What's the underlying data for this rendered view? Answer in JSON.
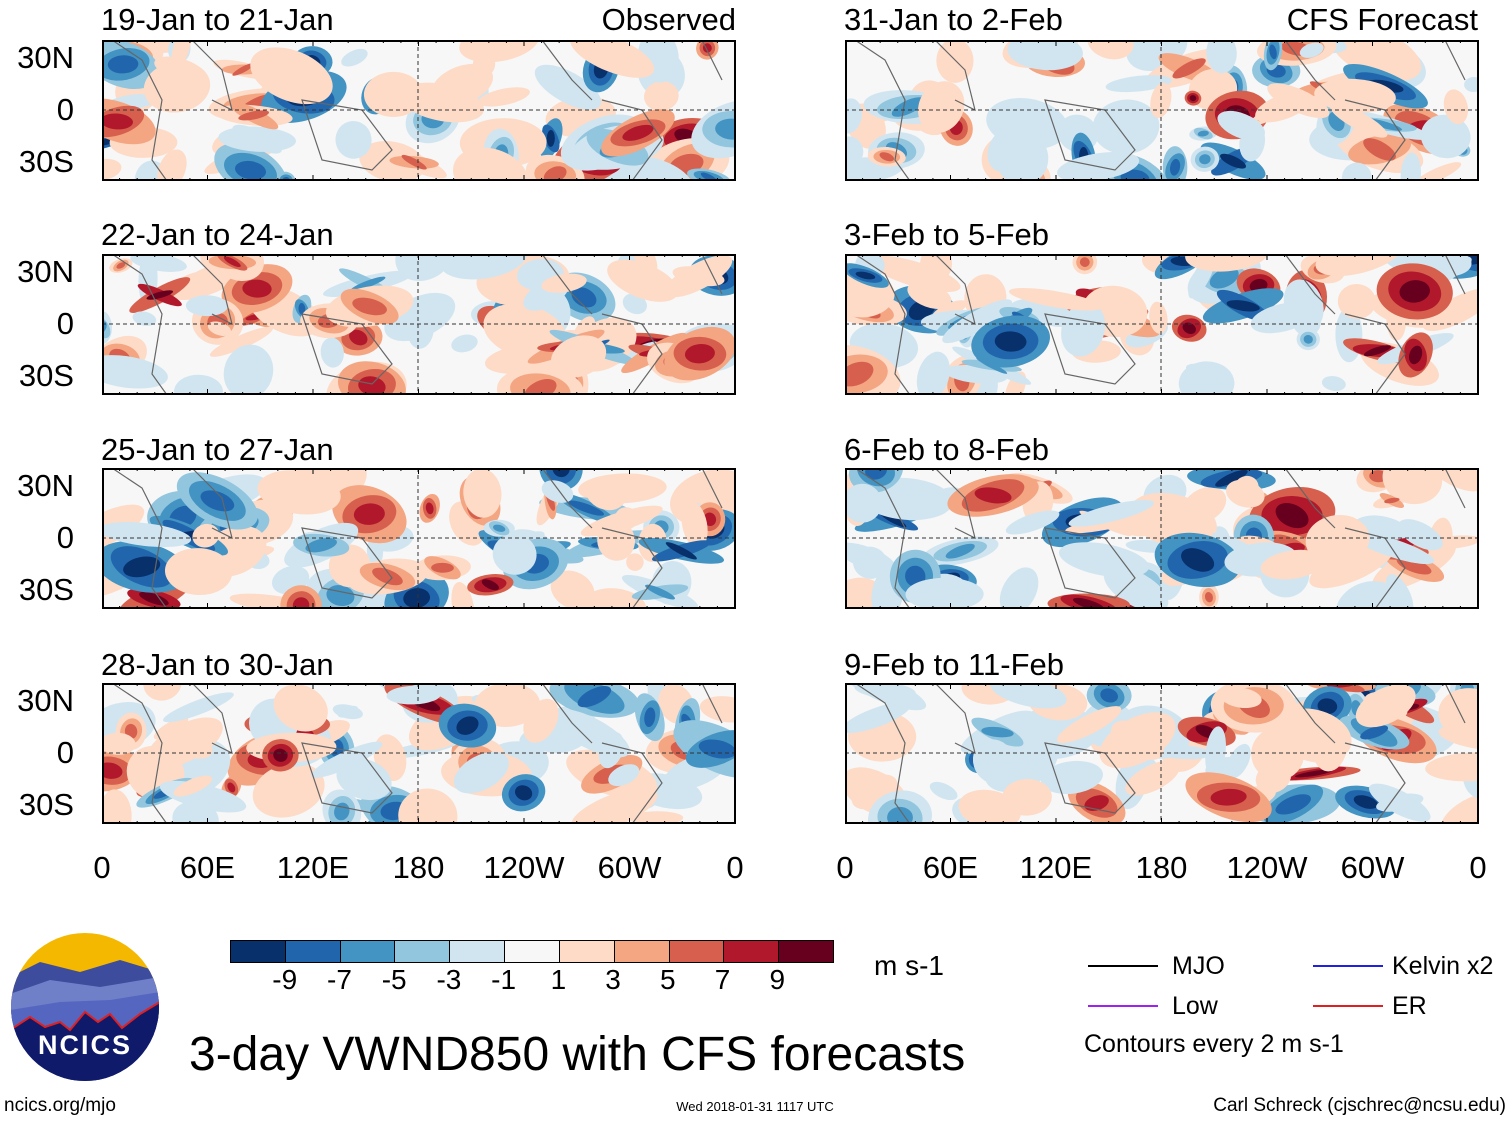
{
  "panels": {
    "left_column_label": "Observed",
    "right_column_label": "CFS Forecast",
    "left": [
      {
        "title": "19-Jan to 21-Jan"
      },
      {
        "title": "22-Jan to 24-Jan"
      },
      {
        "title": "25-Jan to 27-Jan"
      },
      {
        "title": "28-Jan to 30-Jan"
      }
    ],
    "right": [
      {
        "title": "31-Jan to 2-Feb"
      },
      {
        "title": "3-Feb to 5-Feb"
      },
      {
        "title": "6-Feb to 8-Feb"
      },
      {
        "title": "9-Feb to 11-Feb"
      }
    ]
  },
  "axes": {
    "lat_labels": [
      "30N",
      "0",
      "30S"
    ],
    "lon_labels": [
      "0",
      "60E",
      "120E",
      "180",
      "120W",
      "60W",
      "0"
    ]
  },
  "colorbar": {
    "labels": [
      "-9",
      "-7",
      "-5",
      "-3",
      "-1",
      "1",
      "3",
      "5",
      "7",
      "9"
    ],
    "colors": [
      "#08306b",
      "#2166ac",
      "#4393c3",
      "#92c5de",
      "#d1e5f0",
      "#f7f7f7",
      "#fddbc7",
      "#f4a582",
      "#d6604d",
      "#b2182b",
      "#67001f"
    ],
    "units": "m s-1"
  },
  "legend": {
    "items": [
      {
        "label": "MJO",
        "color": "#000000"
      },
      {
        "label": "Kelvin x2",
        "color": "#2020e0"
      },
      {
        "label": "Low",
        "color": "#a020f0"
      },
      {
        "label": "ER",
        "color": "#e02020"
      }
    ],
    "contours_note": "Contours every 2 m s-1"
  },
  "title": "3-day VWND850 with CFS forecasts",
  "logo": {
    "text": "NCICS"
  },
  "footer": {
    "url": "ncics.org/mjo",
    "timestamp": "Wed 2018-01-31 1117 UTC",
    "credit": "Carl Schreck (cjschrec@ncsu.edu)"
  }
}
